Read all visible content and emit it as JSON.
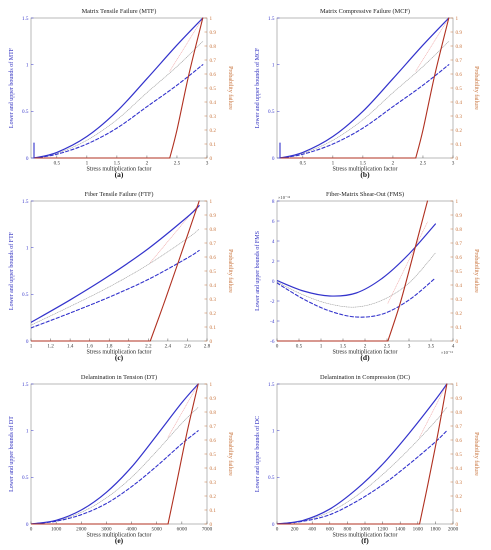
{
  "colors": {
    "lower_upper": "#3333cc",
    "probability": "#b03020",
    "mean": "#9a9a9a",
    "mean_prob": "#f0a8a8",
    "axis_right": "#c8723a"
  },
  "chart_data": [
    {
      "id": "a",
      "type": "line",
      "panel_label": "(a)",
      "title": "Matrix Tensile Failure (MTF)",
      "xlabel": "Stress multiplication factor",
      "ylabel_left": "Lower and upper bounds of MTF",
      "ylabel_right": "Probability failure",
      "x_tick_labels": [
        "0.5",
        "1",
        "1.5",
        "2",
        "2.5",
        "3"
      ],
      "y_left_tick_labels": [
        "0",
        "0.5",
        "1",
        "1.5"
      ],
      "y_right_tick_labels": [
        "0",
        "0.1",
        "0.2",
        "0.3",
        "0.4",
        "0.5",
        "0.6",
        "0.7",
        "0.8",
        "0.9",
        "1"
      ],
      "xlim": [
        0.07,
        3.0
      ],
      "ylim_left": [
        0,
        1.5
      ],
      "ylim_right": [
        0,
        1
      ],
      "series": [
        {
          "role": "upper",
          "style": "solid",
          "x": [
            0.12,
            0.5,
            1.0,
            1.5,
            2.0,
            2.5,
            2.93
          ],
          "y": [
            0.0,
            0.06,
            0.23,
            0.5,
            0.85,
            1.21,
            1.5
          ]
        },
        {
          "role": "lower",
          "style": "dashed",
          "x": [
            0.12,
            0.5,
            1.0,
            1.5,
            2.0,
            2.5,
            2.93
          ],
          "y": [
            0.0,
            0.04,
            0.15,
            0.32,
            0.55,
            0.78,
            1.0
          ]
        },
        {
          "role": "mean",
          "style": "dotted",
          "x": [
            0.12,
            0.5,
            1.0,
            1.5,
            2.0,
            2.5,
            2.93
          ],
          "y": [
            0.0,
            0.05,
            0.19,
            0.41,
            0.7,
            0.98,
            1.25
          ]
        },
        {
          "role": "probability",
          "axis": "right",
          "style": "solid",
          "x": [
            0.12,
            2.38,
            2.5,
            2.7,
            2.93
          ],
          "y": [
            0,
            0,
            0.2,
            0.6,
            1.0
          ]
        },
        {
          "role": "mean-probability",
          "axis": "right",
          "style": "dotted",
          "x": [
            2.38,
            2.93
          ],
          "y": [
            0.62,
            1.0
          ]
        },
        {
          "role": "marker",
          "axis": "left",
          "style": "solid",
          "x": [
            0.12,
            0.12
          ],
          "y": [
            0,
            0.16
          ]
        }
      ]
    },
    {
      "id": "b",
      "type": "line",
      "panel_label": "(b)",
      "title": "Matrix Compressive Failure (MCF)",
      "xlabel": "Stress multiplication factor",
      "ylabel_left": "Lower and upper bounds of MCF",
      "ylabel_right": "Probability failure",
      "x_tick_labels": [
        "0.5",
        "1",
        "1.5",
        "2",
        "2.5",
        "3"
      ],
      "y_left_tick_labels": [
        "0",
        "0.5",
        "1",
        "1.5"
      ],
      "y_right_tick_labels": [
        "0",
        "0.1",
        "0.2",
        "0.3",
        "0.4",
        "0.5",
        "0.6",
        "0.7",
        "0.8",
        "0.9",
        "1"
      ],
      "xlim": [
        0.07,
        3.0
      ],
      "ylim_left": [
        0,
        1.5
      ],
      "ylim_right": [
        0,
        1
      ],
      "series": [
        {
          "role": "upper",
          "style": "solid",
          "x": [
            0.12,
            0.5,
            1.0,
            1.5,
            2.0,
            2.5,
            2.93
          ],
          "y": [
            0.0,
            0.06,
            0.23,
            0.5,
            0.85,
            1.21,
            1.5
          ]
        },
        {
          "role": "lower",
          "style": "dashed",
          "x": [
            0.12,
            0.5,
            1.0,
            1.5,
            2.0,
            2.5,
            2.93
          ],
          "y": [
            0.0,
            0.04,
            0.15,
            0.32,
            0.55,
            0.78,
            1.0
          ]
        },
        {
          "role": "mean",
          "style": "dotted",
          "x": [
            0.12,
            0.5,
            1.0,
            1.5,
            2.0,
            2.5,
            2.93
          ],
          "y": [
            0.0,
            0.05,
            0.19,
            0.41,
            0.7,
            0.98,
            1.25
          ]
        },
        {
          "role": "probability",
          "axis": "right",
          "style": "solid",
          "x": [
            0.12,
            2.38,
            2.5,
            2.7,
            2.93
          ],
          "y": [
            0,
            0,
            0.2,
            0.6,
            1.0
          ]
        },
        {
          "role": "mean-probability",
          "axis": "right",
          "style": "dotted",
          "x": [
            2.38,
            2.93
          ],
          "y": [
            0.62,
            1.0
          ]
        },
        {
          "role": "marker",
          "axis": "left",
          "style": "solid",
          "x": [
            0.12,
            0.12
          ],
          "y": [
            0,
            0.16
          ]
        }
      ]
    },
    {
      "id": "c",
      "type": "line",
      "panel_label": "(c)",
      "title": "Fiber Tensile Failure (FTF)",
      "xlabel": "Stress multiplication factor",
      "ylabel_left": "Lower and upper bounds of FTF",
      "ylabel_right": "Probability failure",
      "x_tick_labels": [
        "1",
        "1.2",
        "1.4",
        "1.6",
        "1.8",
        "2",
        "2.2",
        "2.4",
        "2.6",
        "2.8"
      ],
      "y_left_tick_labels": [
        "0",
        "0.5",
        "1",
        "1.5"
      ],
      "y_right_tick_labels": [
        "0",
        "0.1",
        "0.2",
        "0.3",
        "0.4",
        "0.5",
        "0.6",
        "0.7",
        "0.8",
        "0.9",
        "1"
      ],
      "xlim": [
        1.0,
        2.8
      ],
      "ylim_left": [
        0,
        1.5
      ],
      "ylim_right": [
        0,
        1
      ],
      "series": [
        {
          "role": "upper",
          "style": "solid",
          "x": [
            1.0,
            1.4,
            1.8,
            2.2,
            2.6,
            2.72
          ],
          "y": [
            0.2,
            0.44,
            0.7,
            0.99,
            1.33,
            1.45
          ]
        },
        {
          "role": "lower",
          "style": "dashed",
          "x": [
            1.0,
            1.4,
            1.8,
            2.2,
            2.6,
            2.72
          ],
          "y": [
            0.14,
            0.3,
            0.47,
            0.66,
            0.89,
            0.97
          ]
        },
        {
          "role": "mean",
          "style": "dotted",
          "x": [
            1.0,
            1.4,
            1.8,
            2.2,
            2.6,
            2.72
          ],
          "y": [
            0.17,
            0.37,
            0.58,
            0.82,
            1.1,
            1.2
          ]
        },
        {
          "role": "probability",
          "axis": "right",
          "style": "solid",
          "x": [
            1.0,
            2.22,
            2.35,
            2.5,
            2.72
          ],
          "y": [
            0,
            0,
            0.25,
            0.55,
            1.0
          ]
        },
        {
          "role": "mean-probability",
          "axis": "right",
          "style": "dotted",
          "x": [
            2.22,
            2.72
          ],
          "y": [
            0.56,
            0.98
          ]
        }
      ]
    },
    {
      "id": "d",
      "type": "line",
      "panel_label": "(d)",
      "title": "Fiber-Matrix Shear-Out (FMS)",
      "xlabel": "Stress multiplication factor",
      "ylabel_left": "Lower and upper bounds of FMS",
      "ylabel_right": "Probability failure",
      "x_tick_labels": [
        "0",
        "0.5",
        "1",
        "1.5",
        "2",
        "2.5",
        "3",
        "3.5",
        "4"
      ],
      "x_exponent": "×10⁻¹¹",
      "y_left_tick_labels": [
        "-6",
        "-4",
        "-2",
        "0",
        "2",
        "4",
        "6",
        "8"
      ],
      "y_left_exponent": "×10⁻¹²",
      "y_right_tick_labels": [
        "0",
        "0.1",
        "0.2",
        "0.3",
        "0.4",
        "0.5",
        "0.6",
        "0.7",
        "0.8",
        "0.9",
        "1"
      ],
      "xlim": [
        0,
        4
      ],
      "ylim_left": [
        -6,
        8
      ],
      "ylim_right": [
        0,
        1
      ],
      "series": [
        {
          "role": "upper",
          "style": "solid",
          "x": [
            0,
            0.6,
            1.2,
            1.8,
            2.4,
            3.0,
            3.6
          ],
          "y": [
            0.05,
            -1.0,
            -1.5,
            -1.2,
            0.3,
            2.7,
            5.7
          ]
        },
        {
          "role": "lower",
          "style": "dashed",
          "x": [
            0,
            0.6,
            1.2,
            1.8,
            2.4,
            3.0,
            3.6
          ],
          "y": [
            -0.2,
            -1.8,
            -3.0,
            -3.6,
            -3.3,
            -1.9,
            0.3
          ]
        },
        {
          "role": "mean",
          "style": "dotted",
          "x": [
            0,
            0.6,
            1.2,
            1.8,
            2.4,
            3.0,
            3.6
          ],
          "y": [
            -0.1,
            -1.4,
            -2.3,
            -2.6,
            -1.9,
            -0.2,
            2.8
          ]
        },
        {
          "role": "probability",
          "axis": "right",
          "style": "solid",
          "x": [
            0,
            2.52,
            2.8,
            3.1,
            3.42
          ],
          "y": [
            0,
            0,
            0.27,
            0.62,
            1.0
          ]
        },
        {
          "role": "mean-probability",
          "axis": "right",
          "style": "dotted",
          "x": [
            2.52,
            3.42
          ],
          "y": [
            0.27,
            0.85
          ]
        }
      ]
    },
    {
      "id": "e",
      "type": "line",
      "panel_label": "(e)",
      "title": "Delamination in Tension (DT)",
      "xlabel": "Stress multiplication factor",
      "ylabel_left": "Lower and upper bounds of DT",
      "ylabel_right": "Probability failure",
      "x_tick_labels": [
        "0",
        "1000",
        "2000",
        "3000",
        "4000",
        "5000",
        "6000",
        "7000"
      ],
      "y_left_tick_labels": [
        "0",
        "0.5",
        "1",
        "1.5"
      ],
      "y_right_tick_labels": [
        "0",
        "0.1",
        "0.2",
        "0.3",
        "0.4",
        "0.5",
        "0.6",
        "0.7",
        "0.8",
        "0.9",
        "1"
      ],
      "xlim": [
        0,
        7000
      ],
      "ylim_left": [
        0,
        1.5
      ],
      "ylim_right": [
        0,
        1
      ],
      "series": [
        {
          "role": "upper",
          "style": "solid",
          "x": [
            0,
            1000,
            2000,
            3000,
            4000,
            5000,
            6000,
            6650
          ],
          "y": [
            0,
            0.04,
            0.15,
            0.34,
            0.61,
            0.95,
            1.3,
            1.5
          ]
        },
        {
          "role": "lower",
          "style": "dashed",
          "x": [
            0,
            1000,
            2000,
            3000,
            4000,
            5000,
            6000,
            6650
          ],
          "y": [
            0,
            0.03,
            0.1,
            0.22,
            0.4,
            0.62,
            0.86,
            1.0
          ]
        },
        {
          "role": "mean",
          "style": "dotted",
          "x": [
            0,
            1000,
            2000,
            3000,
            4000,
            5000,
            6000,
            6650
          ],
          "y": [
            0,
            0.035,
            0.125,
            0.28,
            0.5,
            0.78,
            1.08,
            1.25
          ]
        },
        {
          "role": "probability",
          "axis": "right",
          "style": "solid",
          "x": [
            0,
            5450,
            5800,
            6200,
            6650
          ],
          "y": [
            0,
            0,
            0.3,
            0.65,
            1.0
          ]
        },
        {
          "role": "mean-probability",
          "axis": "right",
          "style": "dotted",
          "x": [
            5450,
            6650
          ],
          "y": [
            0.62,
            1.0
          ]
        }
      ]
    },
    {
      "id": "f",
      "type": "line",
      "panel_label": "(f)",
      "title": "Delamination in Compression (DC)",
      "xlabel": "Stress multiplication factor",
      "ylabel_left": "Lower and upper bounds of DC",
      "ylabel_right": "Probability failure",
      "x_tick_labels": [
        "0",
        "200",
        "400",
        "600",
        "800",
        "1000",
        "1200",
        "1400",
        "1600",
        "1800",
        "2000"
      ],
      "y_left_tick_labels": [
        "0",
        "0.5",
        "1",
        "1.5"
      ],
      "y_right_tick_labels": [
        "0",
        "0.1",
        "0.2",
        "0.3",
        "0.4",
        "0.5",
        "0.6",
        "0.7",
        "0.8",
        "0.9",
        "1"
      ],
      "xlim": [
        0,
        2000
      ],
      "ylim_left": [
        0,
        1.5
      ],
      "ylim_right": [
        0,
        1
      ],
      "series": [
        {
          "role": "upper",
          "style": "solid",
          "x": [
            0,
            300,
            600,
            900,
            1200,
            1500,
            1800,
            1930
          ],
          "y": [
            0,
            0.04,
            0.16,
            0.37,
            0.64,
            0.97,
            1.33,
            1.5
          ]
        },
        {
          "role": "lower",
          "style": "dashed",
          "x": [
            0,
            300,
            600,
            900,
            1200,
            1500,
            1800,
            1930
          ],
          "y": [
            0,
            0.03,
            0.1,
            0.24,
            0.42,
            0.64,
            0.88,
            1.0
          ]
        },
        {
          "role": "mean",
          "style": "dotted",
          "x": [
            0,
            300,
            600,
            900,
            1200,
            1500,
            1800,
            1930
          ],
          "y": [
            0,
            0.035,
            0.13,
            0.3,
            0.53,
            0.8,
            1.1,
            1.25
          ]
        },
        {
          "role": "probability",
          "axis": "right",
          "style": "solid",
          "x": [
            0,
            1620,
            1720,
            1830,
            1930
          ],
          "y": [
            0,
            0,
            0.3,
            0.65,
            1.0
          ]
        },
        {
          "role": "mean-probability",
          "axis": "right",
          "style": "dotted",
          "x": [
            1620,
            1930
          ],
          "y": [
            0.62,
            1.0
          ]
        }
      ]
    }
  ]
}
